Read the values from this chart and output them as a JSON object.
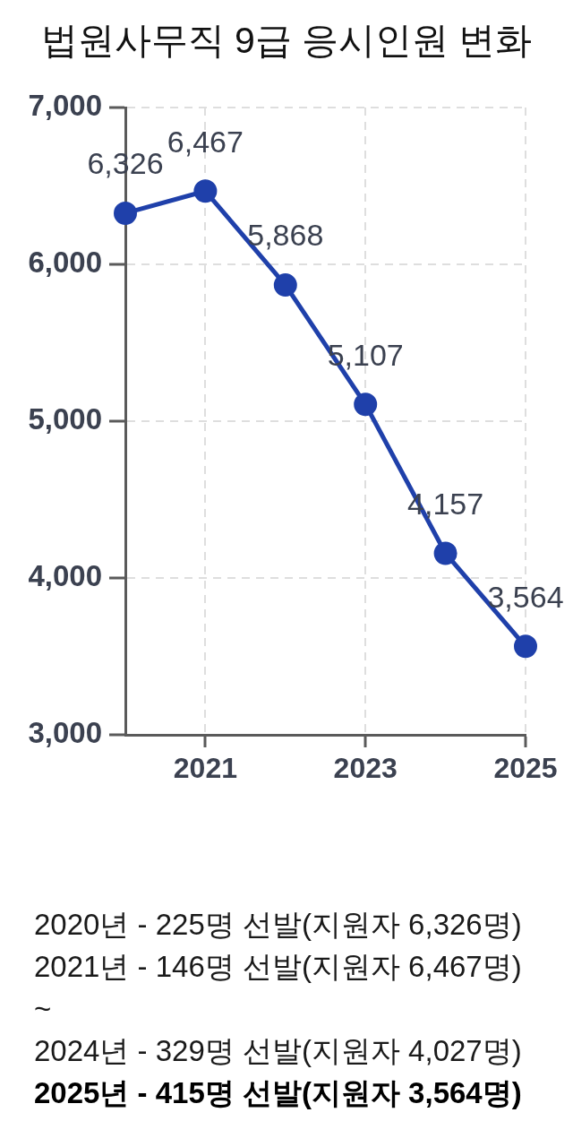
{
  "chart_data": {
    "type": "line",
    "title": "법원사무직 9급 응시인원 변화",
    "x": [
      2020,
      2021,
      2022,
      2023,
      2024,
      2025
    ],
    "series": [
      {
        "color": "#1f40aa",
        "values": [
          6326,
          6467,
          5868,
          5107,
          4157,
          3564
        ],
        "value_labels": [
          "6,326",
          "6,467",
          "5,868",
          "5,107",
          "4,157",
          "3,564"
        ]
      }
    ],
    "xlim": [
      2020,
      2025
    ],
    "xticks": [
      2021,
      2023,
      2025
    ],
    "ylim": [
      3000,
      7000
    ],
    "yticks": [
      {
        "value": 3000,
        "label": "3,000"
      },
      {
        "value": 4000,
        "label": "4,000"
      },
      {
        "value": 5000,
        "label": "5,000"
      },
      {
        "value": 6000,
        "label": "6,000"
      },
      {
        "value": 7000,
        "label": "7,000"
      }
    ],
    "grid": true,
    "legend": false,
    "marker": "circle",
    "line_style": "solid",
    "annotations": [
      "2020년 - 225명 선발(지원자 6,326명)",
      "2021년 - 146명 선발(지원자 6,467명)",
      "~",
      "2024년 - 329명 선발(지원자 4,027명)",
      "2025년 - 415명 선발(지원자 3,564명)"
    ]
  }
}
